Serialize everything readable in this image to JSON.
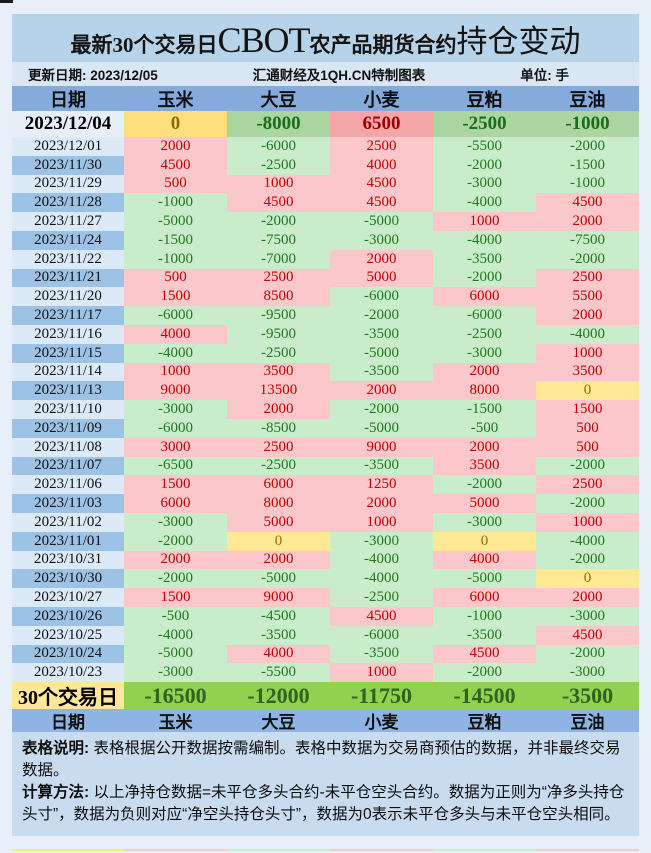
{
  "title": {
    "prefix": "最新30个交易日",
    "brand": "CBOT",
    "middle": "农产品期货合约",
    "suffix": "持仓变动"
  },
  "info": {
    "update": "更新日期: 2023/12/05",
    "source": "汇通财经及1QH.CN特制图表",
    "unit": "单位: 手"
  },
  "chart_data": {
    "type": "table",
    "title": "最新30个交易日CBOT农产品期货合约持仓变动",
    "unit": "手",
    "columns": [
      "日期",
      "玉米",
      "大豆",
      "小麦",
      "豆粕",
      "豆油"
    ],
    "rows": [
      {
        "date": "2023/12/04",
        "values": [
          0,
          -8000,
          6500,
          -2500,
          -1000
        ]
      },
      {
        "date": "2023/12/01",
        "values": [
          2000,
          -6000,
          2500,
          -5500,
          -2000
        ]
      },
      {
        "date": "2023/11/30",
        "values": [
          4500,
          -2500,
          4000,
          -2000,
          -1500
        ]
      },
      {
        "date": "2023/11/29",
        "values": [
          500,
          1000,
          4500,
          -3000,
          -1000
        ]
      },
      {
        "date": "2023/11/28",
        "values": [
          -1000,
          4500,
          4500,
          -4000,
          4500
        ]
      },
      {
        "date": "2023/11/27",
        "values": [
          -5000,
          -2000,
          -5000,
          1000,
          2000
        ]
      },
      {
        "date": "2023/11/24",
        "values": [
          -1500,
          -7500,
          -3000,
          -4000,
          -7500
        ]
      },
      {
        "date": "2023/11/22",
        "values": [
          -1000,
          -7000,
          2000,
          -3500,
          -2000
        ]
      },
      {
        "date": "2023/11/21",
        "values": [
          500,
          2500,
          5000,
          -2000,
          2500
        ]
      },
      {
        "date": "2023/11/20",
        "values": [
          1500,
          8500,
          -6000,
          6000,
          5500
        ]
      },
      {
        "date": "2023/11/17",
        "values": [
          -6000,
          -9500,
          -2000,
          -6000,
          2000
        ]
      },
      {
        "date": "2023/11/16",
        "values": [
          4000,
          -9500,
          -3500,
          -2500,
          -4000
        ]
      },
      {
        "date": "2023/11/15",
        "values": [
          -4000,
          -2500,
          -5000,
          -3000,
          1000
        ]
      },
      {
        "date": "2023/11/14",
        "values": [
          1000,
          3500,
          -3500,
          2000,
          3500
        ]
      },
      {
        "date": "2023/11/13",
        "values": [
          9000,
          13500,
          2000,
          8000,
          0
        ]
      },
      {
        "date": "2023/11/10",
        "values": [
          -3000,
          2000,
          -2000,
          -1500,
          1500
        ]
      },
      {
        "date": "2023/11/09",
        "values": [
          -6000,
          -8500,
          -5000,
          -500,
          500
        ]
      },
      {
        "date": "2023/11/08",
        "values": [
          3000,
          2500,
          9000,
          2000,
          500
        ]
      },
      {
        "date": "2023/11/07",
        "values": [
          -6500,
          -2500,
          -3500,
          3500,
          -2000
        ]
      },
      {
        "date": "2023/11/06",
        "values": [
          1500,
          6000,
          1250,
          -2000,
          2500
        ]
      },
      {
        "date": "2023/11/03",
        "values": [
          6000,
          8000,
          2000,
          5000,
          -2000
        ]
      },
      {
        "date": "2023/11/02",
        "values": [
          -3000,
          5000,
          1000,
          -3000,
          1000
        ]
      },
      {
        "date": "2023/11/01",
        "values": [
          -2000,
          0,
          -3000,
          0,
          -4000
        ]
      },
      {
        "date": "2023/10/31",
        "values": [
          2000,
          2000,
          -4000,
          4000,
          -2000
        ]
      },
      {
        "date": "2023/10/30",
        "values": [
          -2000,
          -5000,
          -4000,
          -5000,
          0
        ]
      },
      {
        "date": "2023/10/27",
        "values": [
          1500,
          9000,
          -2500,
          6000,
          2000
        ]
      },
      {
        "date": "2023/10/26",
        "values": [
          -500,
          -4500,
          4500,
          -1000,
          -3000
        ]
      },
      {
        "date": "2023/10/25",
        "values": [
          -4000,
          -3500,
          -6000,
          -3500,
          4500
        ]
      },
      {
        "date": "2023/10/24",
        "values": [
          -5000,
          4000,
          -3500,
          4500,
          -2000
        ]
      },
      {
        "date": "2023/10/23",
        "values": [
          -3000,
          -5500,
          1000,
          -2000,
          -3000
        ]
      }
    ],
    "summary": {
      "label": "30个交易日",
      "values": [
        -16500,
        -12000,
        -11750,
        -14500,
        -3500
      ]
    },
    "footer_columns": [
      "日期",
      "玉米",
      "大豆",
      "小麦",
      "豆粕",
      "豆油"
    ],
    "value_color_rule": "positive=pink bg/red text, negative=green bg/green text, zero=yellow bg/olive text"
  },
  "notes": [
    {
      "label": "表格说明:",
      "text": " 表格根据公开数据按需编制。表格中数据为交易商预估的数据，并非最终交易数据。"
    },
    {
      "label": "计算方法:",
      "text": " 以上净持仓数据=未平仓多头合约-未平仓空头合约。数据为正则为“净多头持仓头寸”，数据为负则对应“净空头持仓头寸”，数据为0表示未平仓多头与未平仓空头相同。"
    }
  ],
  "colors": {
    "positive_bg": "#fcc7cb",
    "negative_bg": "#c9edcb",
    "zero_bg": "#ffe994",
    "positive_text": "#c00000",
    "negative_text": "#217821",
    "zero_text": "#9c6a00",
    "first_row_positive_bg": "#f3a6a8",
    "first_row_negative_bg": "#abd5a0",
    "first_row_zero_bg": "#ffdf7e",
    "summary_value_bg": "#92d050",
    "summary_label_bg": "#ffe699",
    "summary_text": "#2d6420",
    "header_bg": "#84abdc",
    "footer_header_bg": "#8db4e2",
    "date_dark_bg": "#9cc2e5",
    "date_light_bg": "#dce9f7",
    "title_bg": "#b7d3ea",
    "info_bg": "#d9e6f4",
    "notes_bg": "#c9dcef",
    "page_bg": "#e7eff8"
  },
  "bottom_strip": [
    "#ffeb6b",
    "#fbc9cd",
    "#cbeecd",
    "#fbc9cd",
    "#cbeecd",
    "#fbc9cd"
  ]
}
